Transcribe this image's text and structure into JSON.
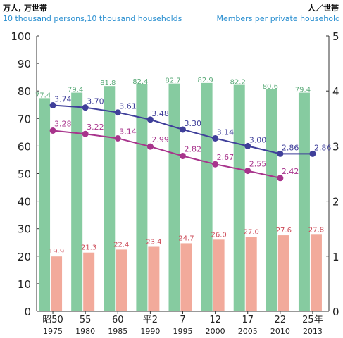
{
  "header": {
    "left_title": "万人, 万世帯",
    "left_subtitle": "10 thousand persons,10 thousand households",
    "right_title": "人／世帯",
    "right_subtitle": "Members per private household"
  },
  "chart_data": {
    "type": "bar",
    "categories": [
      "昭50",
      "55",
      "60",
      "平2",
      "7",
      "12",
      "17",
      "22",
      "25年"
    ],
    "categories_year": [
      "1975",
      "1980",
      "1985",
      "1990",
      "1995",
      "2000",
      "2005",
      "2010",
      "2013"
    ],
    "ylim": [
      0,
      100
    ],
    "y_ticks": [
      0,
      10,
      20,
      30,
      40,
      50,
      60,
      70,
      80,
      90,
      100
    ],
    "y2lim": [
      0,
      5
    ],
    "y2_ticks": [
      0,
      1,
      2,
      3,
      4,
      5
    ],
    "grid": false,
    "colors": {
      "green_bar": "#86cba0",
      "pink_bar": "#f2aa9b",
      "blue_line": "#3f3f9a",
      "magenta_line": "#a8348c",
      "bar_label_green": "#5aaa78",
      "bar_label_pink": "#cc4a57"
    },
    "series": [
      {
        "type": "bar",
        "values": [
          77.4,
          79.4,
          81.8,
          82.4,
          82.7,
          82.9,
          82.2,
          80.6,
          79.4
        ]
      },
      {
        "type": "bar",
        "values": [
          19.9,
          21.3,
          22.4,
          23.4,
          24.7,
          26.0,
          27.0,
          27.6,
          27.8
        ]
      },
      {
        "type": "line",
        "axis": "right",
        "values": [
          3.74,
          3.7,
          3.61,
          3.48,
          3.3,
          3.14,
          3.0,
          2.86,
          2.86
        ]
      },
      {
        "type": "line",
        "axis": "right",
        "values": [
          3.28,
          3.22,
          3.14,
          2.99,
          2.82,
          2.67,
          2.55,
          2.42,
          null
        ]
      }
    ]
  }
}
